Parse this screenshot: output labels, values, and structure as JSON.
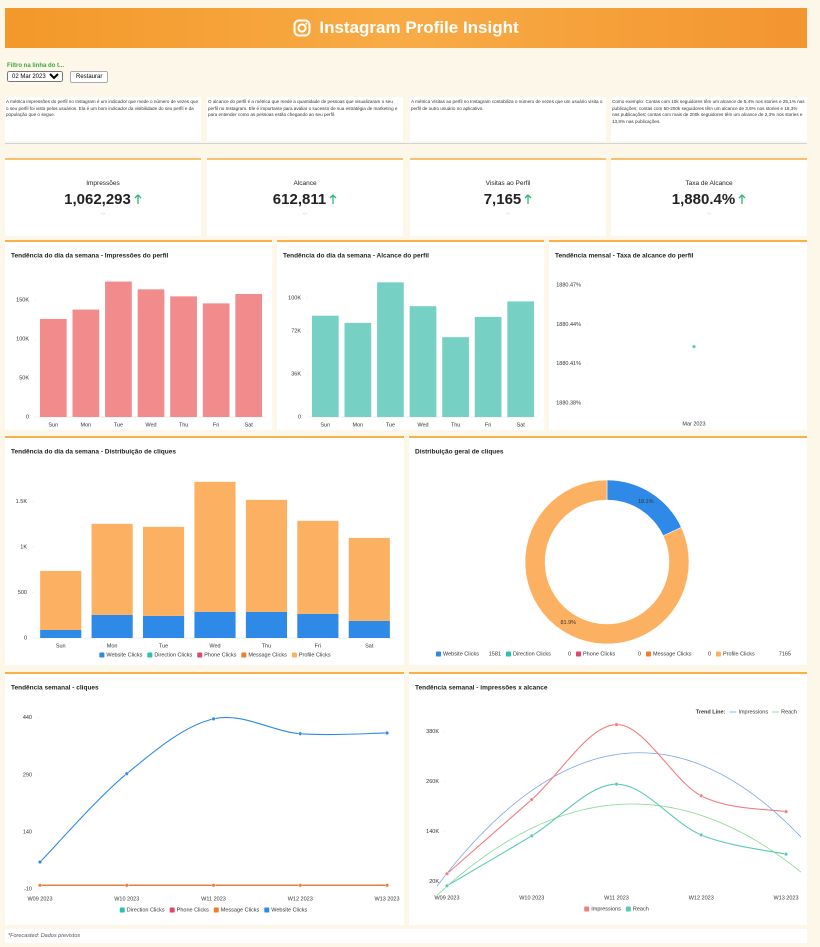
{
  "header": {
    "title": "Instagram Profile Insight"
  },
  "filter": {
    "label": "Filtro na linha do t...",
    "selected": "02 Mar 2023 - 3:",
    "button": "Restaurar"
  },
  "descriptions": [
    "A métrica impressões do perfil no Instagram é um indicador que mede o número de vezes que o seu perfil foi visto pelos usuários. Ela é um bom indicador da visibilidade do seu perfil e da população que o segue.",
    "O alcance do perfil é a métrica que mede a quantidade de pessoas que visualizaram o seu perfil no Instagram. Ele é importante para avaliar o sucesso de sua estratégia de marketing e para entender como as pessoas estão chegando ao seu perfil.",
    "A métrica Visitas ao perfil no Instagram contabiliza o número de vezes que um usuário visita o perfil de outro usuário no aplicativo.",
    "Como exemplo: Contas com 10k seguidores têm um alcance de 5,4% nos stories e 25,1% nas publicações; contas com 50-200k seguidores têm um alcance de 3,6% nos stories e 18,3% nas publicações; contas com mais de 200k seguidores têm um alcance de 2,3% nos stories e 13,8% nas publicações."
  ],
  "kpis": [
    {
      "label": "Impressões",
      "value": "1,062,293",
      "change": "-:-"
    },
    {
      "label": "Alcance",
      "value": "612,811",
      "change": "-:-"
    },
    {
      "label": "Visitas ao Perfil",
      "value": "7,165",
      "change": "-:-"
    },
    {
      "label": "Taxa de Alcance",
      "value": "1,880.4%",
      "change": "-:-"
    }
  ],
  "chart_data": [
    {
      "type": "bar",
      "title": "Tendência do dia da semana - Impressões do perfil",
      "categories": [
        "Sun",
        "Mon",
        "Tue",
        "Wed",
        "Thu",
        "Fri",
        "Sat"
      ],
      "values": [
        126000,
        138000,
        174000,
        164000,
        155000,
        146000,
        158000
      ],
      "color": "#f28b8b",
      "ylim": [
        0,
        185000
      ],
      "yticks": [
        0,
        {
          "value": 50000,
          "label": "50K"
        },
        {
          "value": 100000,
          "label": "100K"
        },
        {
          "value": 150000,
          "label": "150K"
        }
      ]
    },
    {
      "type": "bar",
      "title": "Tendência do dia da semana - Alcance do perfil",
      "categories": [
        "Sun",
        "Mon",
        "Tue",
        "Wed",
        "Thu",
        "Fri",
        "Sat"
      ],
      "values": [
        85000,
        79000,
        113000,
        93000,
        67000,
        84000,
        97000
      ],
      "color": "#76d1c4",
      "ylim": [
        0,
        120000
      ],
      "yticks": [
        0,
        {
          "value": 36000,
          "label": "36K"
        },
        {
          "value": 72000,
          "label": "72K"
        },
        {
          "value": 100000,
          "label": "100K"
        }
      ]
    },
    {
      "type": "line",
      "title": "Tendência mensal - Taxa de alcance do perfil",
      "categories": [
        "Mar 2023"
      ],
      "values": [
        1880.423
      ],
      "color": "#5cc9b5",
      "ylim": [
        1880.37,
        1880.48
      ],
      "yticks": [
        {
          "value": 1880.38,
          "label": "1880.38%"
        },
        {
          "value": 1880.41,
          "label": "1880.41%"
        },
        {
          "value": 1880.44,
          "label": "1880.44%"
        },
        {
          "value": 1880.47,
          "label": "1880.47%"
        }
      ]
    },
    {
      "type": "stacked_bar",
      "title": "Tendência do dia da semana - Distribuição de cliques",
      "categories": [
        "Sun",
        "Mon",
        "Tue",
        "Wed",
        "Thu",
        "Fri",
        "Sat"
      ],
      "series": [
        {
          "name": "Website Clicks",
          "color": "#2e8ae6",
          "values": [
            88,
            253,
            242,
            286,
            286,
            264,
            187
          ]
        },
        {
          "name": "Direction Clicks",
          "color": "#27c2b0",
          "values": [
            0,
            0,
            0,
            0,
            0,
            0,
            0
          ]
        },
        {
          "name": "Phone Clicks",
          "color": "#e2466b",
          "values": [
            0,
            0,
            0,
            0,
            0,
            0,
            0
          ]
        },
        {
          "name": "Message Clicks",
          "color": "#f07c2e",
          "values": [
            0,
            0,
            0,
            0,
            0,
            0,
            0
          ]
        },
        {
          "name": "Profile Clicks",
          "color": "#fcb162",
          "values": [
            648,
            1000,
            978,
            1428,
            1230,
            1022,
            912
          ]
        }
      ],
      "ylim": [
        0,
        1800
      ],
      "yticks": [
        0,
        500,
        {
          "value": 1000,
          "label": "1K"
        },
        {
          "value": 1500,
          "label": "1.5K"
        }
      ]
    },
    {
      "type": "pie",
      "donut": true,
      "title": "Distribuição geral de cliques",
      "categories": [
        "Website Clicks",
        "Direction Clicks",
        "Phone Clicks",
        "Message Clicks",
        "Profile Clicks"
      ],
      "values": [
        1581,
        0,
        0,
        0,
        7165
      ],
      "colors": [
        "#2e8ae6",
        "#27c2b0",
        "#e2466b",
        "#f07c2e",
        "#fcb162"
      ],
      "value_labels": [
        "18.1%",
        null,
        null,
        null,
        "81.9%"
      ]
    },
    {
      "type": "line",
      "title": "Tendência semanal - cliques",
      "categories": [
        "W09 2023",
        "W10 2023",
        "W11 2023",
        "W12 2023",
        "W13 2023"
      ],
      "series": [
        {
          "name": "Direction Clicks",
          "color": "#27c2b0",
          "values": [
            0,
            0,
            0,
            0,
            0
          ]
        },
        {
          "name": "Phone Clicks",
          "color": "#e2466b",
          "values": [
            0,
            0,
            0,
            0,
            0
          ]
        },
        {
          "name": "Message Clicks",
          "color": "#f07c2e",
          "values": [
            0,
            0,
            0,
            0,
            0
          ]
        },
        {
          "name": "Website Clicks",
          "color": "#2e8ae6",
          "values": [
            61,
            293,
            437,
            398,
            400
          ]
        }
      ],
      "ylim": [
        -15,
        455
      ],
      "yticks": [
        -10,
        140,
        290,
        440
      ]
    },
    {
      "type": "line",
      "title": "Tendência semanal - impressões x alcance",
      "categories": [
        "W09 2023",
        "W10 2023",
        "W11 2023",
        "W12 2023",
        "W13 2023"
      ],
      "series": [
        {
          "name": "Impressions",
          "color": "#f07f82",
          "trend_color": "#7aa6e8",
          "values": [
            39000,
            217000,
            397000,
            226000,
            188000
          ]
        },
        {
          "name": "Reach",
          "color": "#5cc9b5",
          "trend_color": "#86d98f",
          "values": [
            10000,
            130000,
            254000,
            132000,
            86000
          ]
        }
      ],
      "trend_label": "Trend Line:",
      "ylim": [
        0,
        420000
      ],
      "yticks": [
        {
          "value": 20000,
          "label": "20K"
        },
        {
          "value": 140000,
          "label": "140K"
        },
        {
          "value": 260000,
          "label": "260K"
        },
        {
          "value": 380000,
          "label": "380K"
        }
      ]
    }
  ],
  "footer": "*Forecasted: Dados previstos"
}
